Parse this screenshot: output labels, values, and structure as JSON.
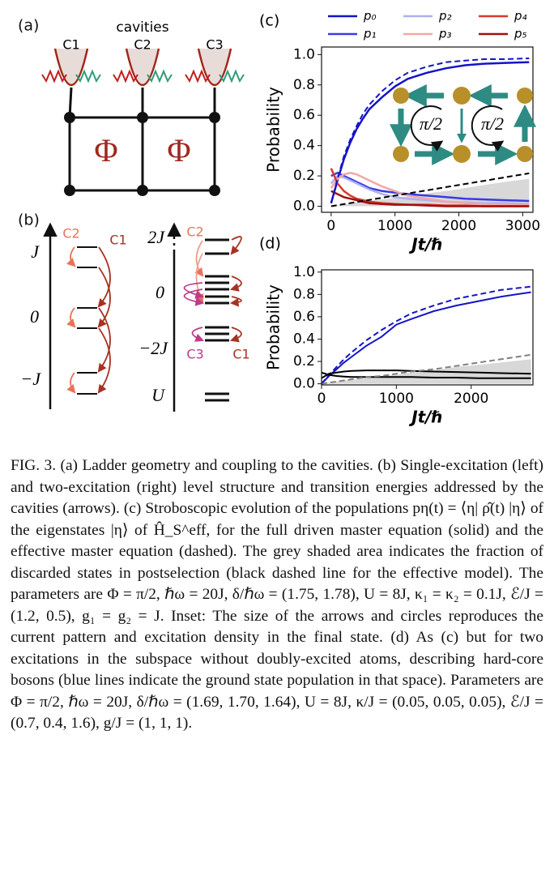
{
  "panel_a": {
    "label": "(a)",
    "title": "cavities",
    "cavities": [
      "C1",
      "C2",
      "C3"
    ],
    "flux": [
      "Φ",
      "Φ"
    ]
  },
  "panel_b": {
    "label": "(b)",
    "left": {
      "cavities": [
        "C2",
        "C1"
      ],
      "energies": [
        "J",
        "0",
        "−J"
      ]
    },
    "right": {
      "cavities": [
        "C2",
        "C3",
        "C1"
      ],
      "energies": [
        "2J",
        "0",
        "−2J",
        "U"
      ]
    }
  },
  "chart_data": [
    {
      "type": "line",
      "label": "(c)",
      "xlabel": "Jt/ℏ",
      "ylabel": "Probability",
      "x": [
        0,
        100,
        200,
        300,
        400,
        500,
        600,
        800,
        1000,
        1200,
        1500,
        1800,
        2100,
        2400,
        2700,
        3100
      ],
      "xlim": [
        -150,
        3160
      ],
      "xticks": [
        0,
        1000,
        2000,
        3000
      ],
      "ylim": [
        -0.04,
        1.05
      ],
      "yticks": [
        {
          "value": 0,
          "label": "0.0"
        },
        {
          "value": 0.2,
          "label": "0.2"
        },
        {
          "value": 0.4,
          "label": "0.4"
        },
        {
          "value": 0.6,
          "label": "0.6"
        },
        {
          "value": 0.8,
          "label": "0.8"
        },
        {
          "value": 1,
          "label": "1.0"
        }
      ],
      "series": [
        {
          "name": "p₀",
          "color": "#1414c8",
          "values": [
            0.02,
            0.17,
            0.31,
            0.42,
            0.51,
            0.58,
            0.64,
            0.72,
            0.79,
            0.84,
            0.88,
            0.91,
            0.93,
            0.94,
            0.945,
            0.95
          ]
        },
        {
          "name": "p₁",
          "color": "#3a3ae8",
          "values": [
            0.2,
            0.22,
            0.2,
            0.18,
            0.16,
            0.14,
            0.12,
            0.1,
            0.09,
            0.08,
            0.07,
            0.06,
            0.05,
            0.045,
            0.04,
            0.035
          ]
        },
        {
          "name": "p₂",
          "color": "#aeb0f0",
          "values": [
            0.15,
            0.2,
            0.19,
            0.17,
            0.15,
            0.13,
            0.11,
            0.08,
            0.06,
            0.05,
            0.04,
            0.03,
            0.025,
            0.02,
            0.02,
            0.015
          ]
        },
        {
          "name": "p₃",
          "color": "#f2a7a7",
          "values": [
            0.12,
            0.18,
            0.21,
            0.22,
            0.21,
            0.19,
            0.17,
            0.13,
            0.1,
            0.07,
            0.05,
            0.03,
            0.02,
            0.015,
            0.01,
            0.01
          ]
        },
        {
          "name": "p₄",
          "color": "#d83a2a",
          "values": [
            0.25,
            0.15,
            0.1,
            0.07,
            0.05,
            0.04,
            0.03,
            0.02,
            0.015,
            0.01,
            0.01,
            0.005,
            0.005,
            0,
            0,
            0
          ]
        },
        {
          "name": "p₅",
          "color": "#a01010",
          "values": [
            0.1,
            0.08,
            0.06,
            0.05,
            0.04,
            0.03,
            0.02,
            0.015,
            0.01,
            0.01,
            0.005,
            0,
            0,
            0,
            0,
            0
          ]
        }
      ],
      "lines": [
        {
          "color": "#1414c8",
          "style": "dashed",
          "values": [
            0.02,
            0.18,
            0.33,
            0.44,
            0.53,
            0.61,
            0.67,
            0.76,
            0.83,
            0.88,
            0.92,
            0.95,
            0.96,
            0.97,
            0.97,
            0.975
          ]
        },
        {
          "color": "#000000",
          "style": "dashed",
          "values": [
            0,
            0.007,
            0.014,
            0.021,
            0.028,
            0.035,
            0.042,
            0.056,
            0.07,
            0.084,
            0.105,
            0.126,
            0.147,
            0.168,
            0.189,
            0.217
          ]
        }
      ],
      "area": {
        "color": "#d8d8d8",
        "values": [
          0,
          0.005,
          0.01,
          0.02,
          0.025,
          0.03,
          0.035,
          0.045,
          0.055,
          0.065,
          0.085,
          0.1,
          0.12,
          0.14,
          0.16,
          0.18
        ]
      },
      "inset_labels": [
        "π/2",
        "π/2"
      ]
    },
    {
      "type": "line",
      "label": "(d)",
      "xlabel": "Jt/ℏ",
      "ylabel": "Probability",
      "x": [
        0,
        100,
        200,
        300,
        400,
        600,
        800,
        1000,
        1200,
        1500,
        1800,
        2100,
        2400,
        2800
      ],
      "xlim": [
        0,
        2826
      ],
      "xticks": [
        0,
        1000,
        2000
      ],
      "ylim": [
        -0.01,
        1.02
      ],
      "yticks": [
        {
          "value": 0,
          "label": "0.0"
        },
        {
          "value": 0.2,
          "label": "0.2"
        },
        {
          "value": 0.4,
          "label": "0.4"
        },
        {
          "value": 0.6,
          "label": "0.6"
        },
        {
          "value": 0.8,
          "label": "0.8"
        },
        {
          "value": 1,
          "label": "1.0"
        }
      ],
      "lines": [
        {
          "color": "#1414c8",
          "style": "solid",
          "values": [
            0,
            0.07,
            0.13,
            0.19,
            0.24,
            0.34,
            0.42,
            0.53,
            0.58,
            0.65,
            0.7,
            0.74,
            0.78,
            0.82
          ]
        },
        {
          "color": "#1414c8",
          "style": "dashed",
          "values": [
            0,
            0.08,
            0.15,
            0.22,
            0.28,
            0.39,
            0.48,
            0.56,
            0.63,
            0.7,
            0.76,
            0.8,
            0.84,
            0.87
          ]
        },
        {
          "color": "#000000",
          "style": "solid",
          "values": [
            0.05,
            0.09,
            0.1,
            0.11,
            0.115,
            0.12,
            0.12,
            0.12,
            0.115,
            0.11,
            0.105,
            0.1,
            0.095,
            0.09
          ]
        },
        {
          "color": "#000000",
          "style": "solid",
          "values": [
            0.1,
            0.08,
            0.07,
            0.065,
            0.06,
            0.06,
            0.06,
            0.06,
            0.06,
            0.055,
            0.055,
            0.05,
            0.05,
            0.05
          ]
        },
        {
          "color": "#808080",
          "style": "dashed",
          "values": [
            0,
            0.01,
            0.02,
            0.03,
            0.04,
            0.06,
            0.07,
            0.09,
            0.11,
            0.13,
            0.16,
            0.19,
            0.22,
            0.26
          ]
        }
      ],
      "area": {
        "color": "#d8d8d8",
        "values": [
          0,
          0.01,
          0.02,
          0.03,
          0.035,
          0.05,
          0.07,
          0.08,
          0.1,
          0.12,
          0.15,
          0.17,
          0.19,
          0.22
        ]
      }
    }
  ],
  "caption": "FIG. 3.  (a) Ladder geometry and coupling to the cavities. (b) Single-excitation (left) and two-excitation (right) level structure and transition energies addressed by the cavities (arrows). (c) Stroboscopic evolution of the populations pη(t) = ⟨η| ρ̂(t) |η⟩ of the eigenstates |η⟩ of Ĥ_S^eff, for the full driven master equation (solid) and the effective master equation (dashed). The grey shaded area indicates the fraction of discarded states in postselection (black dashed line for the effective model). The parameters are Φ = π/2, ℏω = 20J, δ/ℏω = (1.75, 1.78), U = 8J, κ₁ = κ₂ = 0.1J, ℰ/J = (1.2, 0.5), g₁ = g₂ = J. Inset: The size of the arrows and circles reproduces the current pattern and excitation density in the final state. (d) As (c) but for two excitations in the subspace without doubly-excited atoms, describing hard-core bosons (blue lines indicate the ground state population in that space). Parameters are Φ = π/2, ℏω = 20J, δ/ℏω = (1.69, 1.70, 1.64), U = 8J, κ/J = (0.05, 0.05, 0.05), ℰ/J = (0.7, 0.4, 1.6), g/J = (1, 1, 1)."
}
